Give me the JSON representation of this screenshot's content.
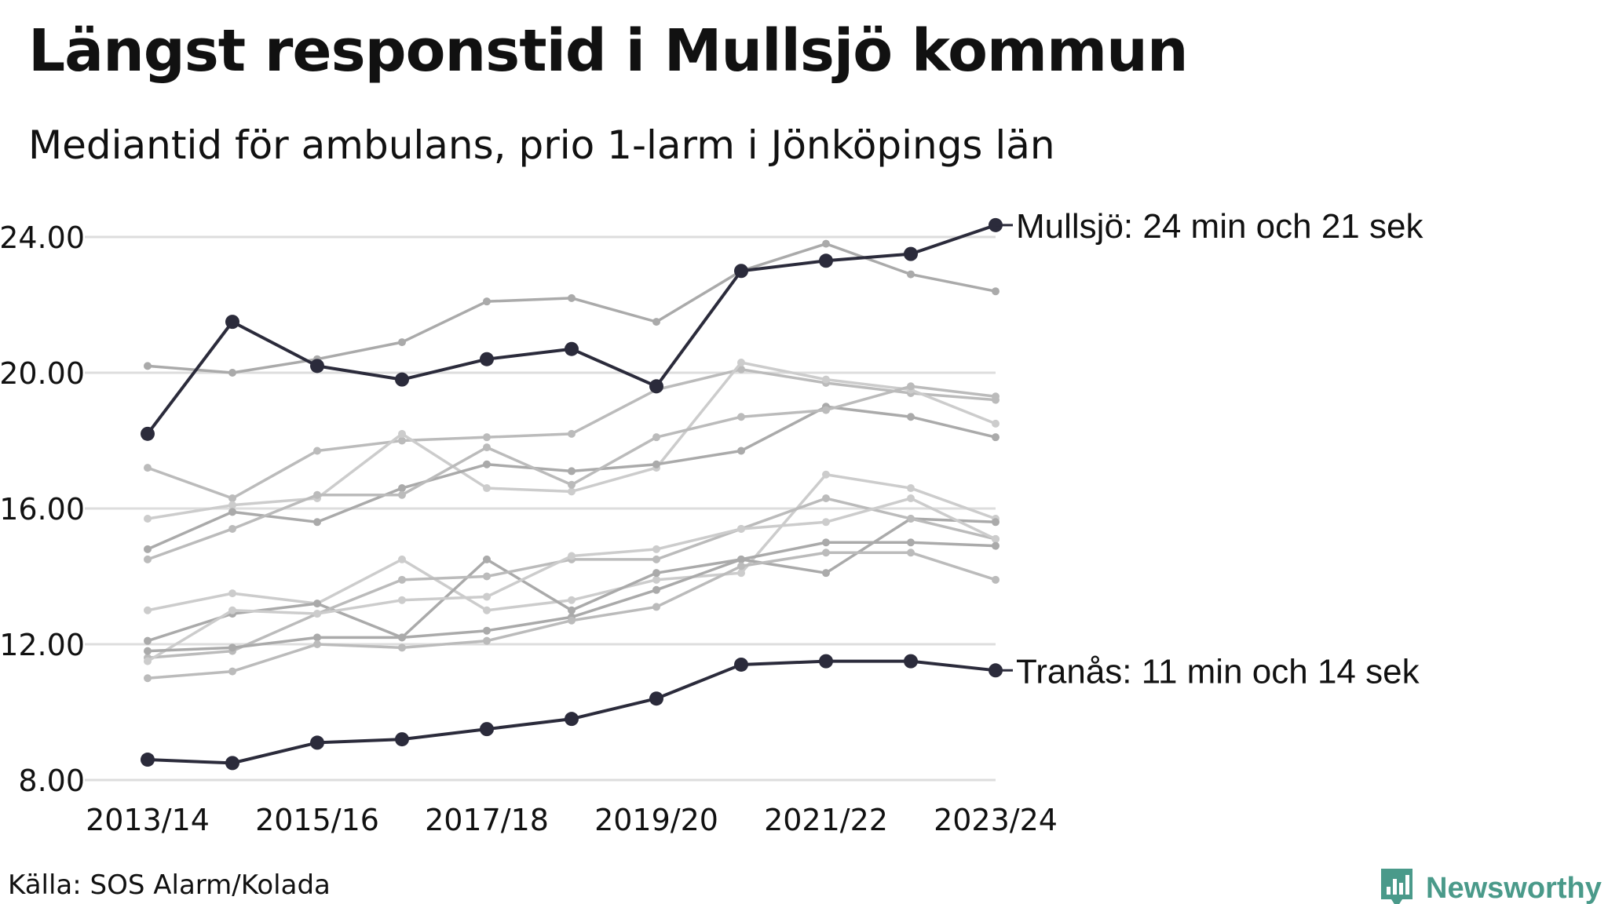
{
  "title": "Längst responstid i Mullsjö kommun",
  "subtitle": "Mediantid för ambulans, prio 1-larm i Jönköpings län",
  "source": "Källa: SOS Alarm/Kolada",
  "brand": {
    "name": "Newsworthy",
    "icon": "newsworthy-chart-logo-icon",
    "color": "#4a9a8a"
  },
  "colors": {
    "highlight": "#2b2b3b",
    "background_series": [
      "#aaaaaa",
      "#bbbbbb",
      "#cccccc"
    ],
    "grid": "#dddddd"
  },
  "chart_data": {
    "type": "line",
    "x": [
      "2013/14",
      "2014/15",
      "2015/16",
      "2016/17",
      "2017/18",
      "2018/19",
      "2019/20",
      "2020/21",
      "2021/22",
      "2022/23",
      "2023/24"
    ],
    "x_tick_labels": [
      "2013/14",
      "2015/16",
      "2017/18",
      "2019/20",
      "2021/22",
      "2023/24"
    ],
    "y_ticks": [
      "8.00",
      "12.00",
      "16.00",
      "20.00",
      "24.00"
    ],
    "ylim": [
      8,
      24.4
    ],
    "grid": true,
    "highlighted": [
      {
        "name": "Mullsjö",
        "label": "Mullsjö: 24 min och 21 sek",
        "values": [
          18.2,
          21.5,
          20.2,
          19.8,
          20.4,
          20.7,
          19.6,
          23.0,
          23.3,
          23.5,
          24.35
        ]
      },
      {
        "name": "Tranås",
        "label": "Tranås: 11 min och 14 sek",
        "values": [
          8.6,
          8.5,
          9.1,
          9.2,
          9.5,
          9.8,
          10.4,
          11.4,
          11.5,
          11.5,
          11.23
        ]
      }
    ],
    "series": [
      {
        "values": [
          20.2,
          20.0,
          20.4,
          20.9,
          22.1,
          22.2,
          21.5,
          23.0,
          23.8,
          22.9,
          22.4
        ]
      },
      {
        "values": [
          17.2,
          16.3,
          17.7,
          18.0,
          18.1,
          18.2,
          19.5,
          20.1,
          19.7,
          19.4,
          19.2
        ]
      },
      {
        "values": [
          15.7,
          16.1,
          16.3,
          18.2,
          16.6,
          16.5,
          17.2,
          20.3,
          19.8,
          19.5,
          18.5
        ]
      },
      {
        "values": [
          14.8,
          15.9,
          15.6,
          16.6,
          17.3,
          17.1,
          17.3,
          17.7,
          19.0,
          18.7,
          18.1
        ]
      },
      {
        "values": [
          14.5,
          15.4,
          16.4,
          16.4,
          17.8,
          16.7,
          18.1,
          18.7,
          18.9,
          19.6,
          19.3
        ]
      },
      {
        "values": [
          13.0,
          13.5,
          13.2,
          14.5,
          13.0,
          13.3,
          13.9,
          14.1,
          17.0,
          16.6,
          15.7
        ]
      },
      {
        "values": [
          12.1,
          12.9,
          13.2,
          12.2,
          14.5,
          13.0,
          14.1,
          14.5,
          14.1,
          15.7,
          15.6
        ]
      },
      {
        "values": [
          11.6,
          11.8,
          12.9,
          13.9,
          14.0,
          14.5,
          14.5,
          15.4,
          16.3,
          15.7,
          15.1
        ]
      },
      {
        "values": [
          11.5,
          13.0,
          12.9,
          13.3,
          13.4,
          14.6,
          14.8,
          15.4,
          15.6,
          16.3,
          15.1
        ]
      },
      {
        "values": [
          11.8,
          11.9,
          12.2,
          12.2,
          12.4,
          12.8,
          13.6,
          14.5,
          15.0,
          15.0,
          14.9
        ]
      },
      {
        "values": [
          11.0,
          11.2,
          12.0,
          11.9,
          12.1,
          12.7,
          13.1,
          14.3,
          14.7,
          14.7,
          13.9
        ]
      }
    ]
  }
}
